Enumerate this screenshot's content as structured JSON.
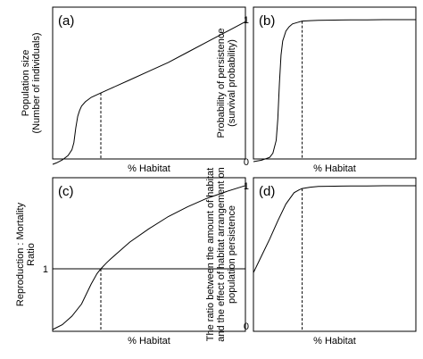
{
  "chart_data": [
    {
      "panel_label": "(a)",
      "type": "line",
      "xlabel": "% Habitat",
      "ylabel": [
        "Population size",
        "(Number of individuals)"
      ],
      "yticks": [],
      "series": [
        {
          "x": [
            0,
            2,
            5,
            8,
            10,
            11,
            12,
            13,
            14,
            15,
            17,
            20,
            25,
            30,
            40,
            50,
            60,
            70,
            80,
            90,
            100
          ],
          "y": [
            0,
            1,
            3,
            6,
            10,
            15,
            25,
            33,
            37,
            40,
            43,
            46,
            49,
            52,
            58,
            64,
            70,
            77,
            84,
            91,
            98
          ]
        }
      ],
      "threshold_x": 25
    },
    {
      "panel_label": "(b)",
      "type": "line",
      "xlabel": "% Habitat",
      "ylabel": [
        "Probability of persistence",
        "(survival probability)"
      ],
      "yticks": [
        "0",
        "1"
      ],
      "ylim": [
        0,
        1
      ],
      "series": [
        {
          "x": [
            0,
            5,
            10,
            12,
            14,
            15,
            16,
            17,
            18,
            20,
            22,
            24,
            27,
            30,
            35,
            40,
            50,
            60,
            70,
            80,
            90,
            100
          ],
          "y": [
            0,
            0.01,
            0.03,
            0.06,
            0.15,
            0.3,
            0.55,
            0.75,
            0.85,
            0.92,
            0.95,
            0.97,
            0.98,
            0.99,
            0.993,
            0.995,
            0.997,
            0.998,
            0.999,
            1.0,
            1.0,
            1.0
          ]
        }
      ],
      "threshold_x": 30
    },
    {
      "panel_label": "(c)",
      "type": "line",
      "xlabel": "% Habitat",
      "ylabel": [
        "Reproduction : Mortality",
        "Ratio"
      ],
      "yticks": [
        "1"
      ],
      "hline_y": 1,
      "ylim": [
        0,
        2.5
      ],
      "series": [
        {
          "x": [
            0,
            5,
            10,
            15,
            20,
            23,
            25,
            28,
            30,
            35,
            40,
            50,
            60,
            70,
            80,
            90,
            100
          ],
          "y": [
            0,
            0.08,
            0.22,
            0.42,
            0.75,
            0.92,
            1.0,
            1.1,
            1.16,
            1.3,
            1.44,
            1.66,
            1.86,
            2.02,
            2.16,
            2.27,
            2.37
          ]
        }
      ],
      "threshold_x": 25
    },
    {
      "panel_label": "(d)",
      "type": "line",
      "xlabel": "% Habitat",
      "ylabel": [
        "The ratio between the amount of habitat",
        "and the effect of habitat arrangement on",
        "population persistence"
      ],
      "yticks": [
        "0",
        "1"
      ],
      "ylim": [
        0,
        1
      ],
      "series": [
        {
          "x": [
            0,
            5,
            10,
            15,
            20,
            25,
            28,
            30,
            35,
            40,
            50,
            60,
            70,
            80,
            90,
            100
          ],
          "y": [
            0.38,
            0.5,
            0.62,
            0.75,
            0.87,
            0.95,
            0.97,
            0.98,
            0.99,
            0.995,
            0.997,
            0.998,
            0.999,
            1.0,
            1.0,
            1.0
          ]
        }
      ],
      "threshold_x": 30
    }
  ]
}
